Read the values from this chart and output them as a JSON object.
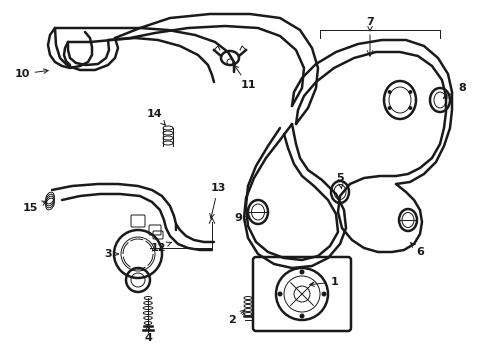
{
  "background_color": "#ffffff",
  "line_color": "#1a1a1a",
  "figsize": [
    4.89,
    3.6
  ],
  "dpi": 100,
  "lw_hose": 1.8,
  "lw_thin": 0.7,
  "lw_label": 0.7
}
